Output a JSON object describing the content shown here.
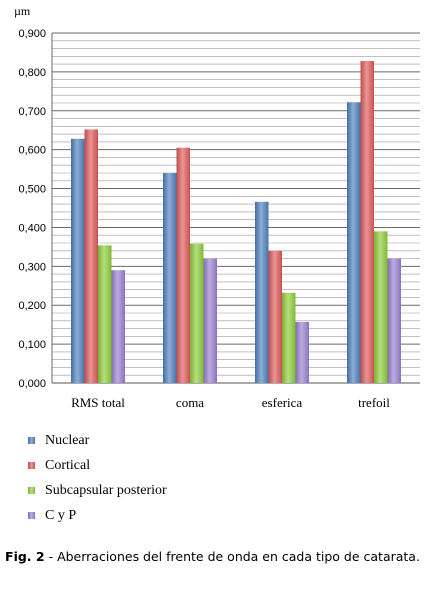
{
  "chart_data": {
    "type": "bar",
    "unit_label": "µm",
    "categories": [
      "RMS total",
      "coma",
      "esferica",
      "trefoil"
    ],
    "series": [
      {
        "name": "Nuclear",
        "color": "#4f81bd",
        "values": [
          0.628,
          0.54,
          0.466,
          0.722
        ]
      },
      {
        "name": "Cortical",
        "color": "#e05a5a",
        "values": [
          0.652,
          0.605,
          0.34,
          0.828
        ]
      },
      {
        "name": "Subcapsular posterior",
        "color": "#8fce3a",
        "values": [
          0.354,
          0.358,
          0.232,
          0.39
        ]
      },
      {
        "name": "C y P",
        "color": "#9a7fd1",
        "values": [
          0.29,
          0.32,
          0.157,
          0.32
        ]
      }
    ],
    "ylim": [
      0,
      0.9
    ],
    "yticks": [
      "0,000",
      "0,100",
      "0,200",
      "0,300",
      "0,400",
      "0,500",
      "0,600",
      "0,700",
      "0,800",
      "0,900"
    ],
    "grid": true,
    "legend_position": "bottom-left"
  },
  "caption": {
    "label": "Fig. 2",
    "text": " - Aberraciones del frente de onda en cada tipo de catarata."
  }
}
